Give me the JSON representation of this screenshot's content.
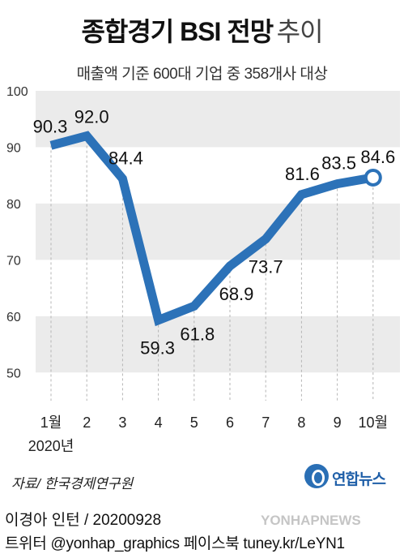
{
  "title": {
    "main": "종합경기 BSI 전망",
    "light": "추이"
  },
  "subtitle": "매출액 기준 600대 기업 중 358개사 대상",
  "chart_data": {
    "type": "line",
    "title": "종합경기 BSI 전망 추이",
    "subtitle": "매출액 기준 600대 기업 중 358개사 대상",
    "categories": [
      "1월",
      "2",
      "3",
      "4",
      "5",
      "6",
      "7",
      "8",
      "9",
      "10월"
    ],
    "values": [
      90.3,
      92.0,
      84.4,
      59.3,
      61.8,
      68.9,
      73.7,
      81.6,
      83.5,
      84.6
    ],
    "value_labels": [
      "90.3",
      "92.0",
      "84.4",
      "59.3",
      "61.8",
      "68.9",
      "73.7",
      "81.6",
      "83.5",
      "84.6"
    ],
    "year_label": "2020년",
    "yticks": [
      50,
      60,
      70,
      80,
      90,
      100
    ],
    "ylim": [
      45,
      100
    ],
    "grid": "alternating horizontal bands",
    "line_color": "#2c72b8",
    "band_color": "#ebebeb"
  },
  "source": "자료/ 한국경제연구원",
  "logo": {
    "text": "연합뉴스",
    "icon": "yonhap-logo-icon",
    "color": "#1f5fa8"
  },
  "credit": {
    "line1": "이경아 인턴 / 20200928",
    "line2": "트위터 @yonhap_graphics  페이스북 tuney.kr/LeYN1"
  },
  "watermark": "YONHAPNEWS"
}
